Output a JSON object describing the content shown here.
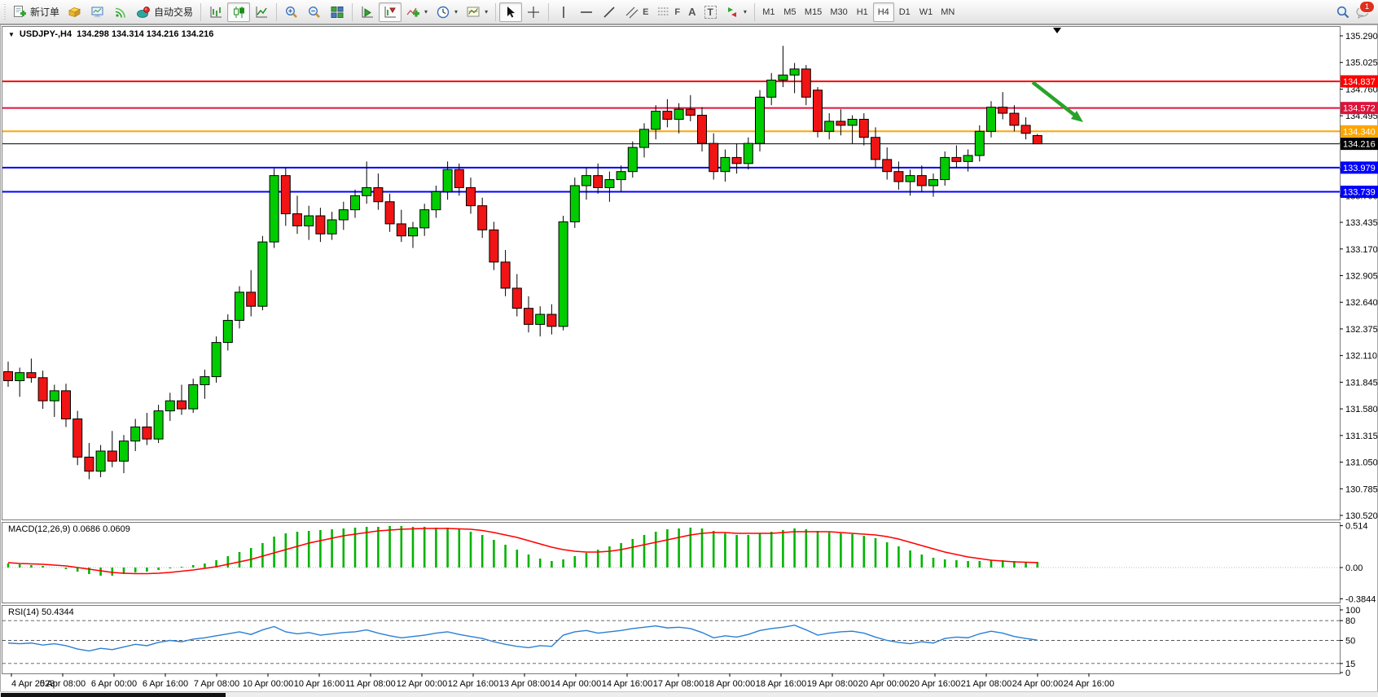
{
  "window": {
    "title_symbol": "USDJPY-,H4",
    "title_ohlc": "134.298 134.314 134.216 134.216"
  },
  "toolbar": {
    "new_order_label": "新订单",
    "autotrading_label": "自动交易",
    "timeframes": [
      "M1",
      "M5",
      "M15",
      "M30",
      "H1",
      "H4",
      "D1",
      "W1",
      "MN"
    ],
    "active_timeframe": "H4",
    "notification_badge": "1"
  },
  "icons": {
    "title_dropdown": "▼",
    "dropdown_arrow": "▾",
    "text_tool": "A",
    "label_tool": "T",
    "channel_suffix": "E",
    "fibo_suffix": "F"
  },
  "price_axis": {
    "side": "right",
    "tick_step": 0.265,
    "ticks": [
      "135.290",
      "135.025",
      "134.760",
      "134.495",
      "134.230",
      "133.965",
      "133.700",
      "133.435",
      "133.170",
      "132.905",
      "132.640",
      "132.375",
      "132.110",
      "131.845",
      "131.580",
      "131.315",
      "131.050",
      "130.785",
      "130.520"
    ],
    "badges": [
      {
        "label": "134.837",
        "price": 134.837,
        "color": "#FF0000",
        "text_color": "#FFFFFF"
      },
      {
        "label": "134.572",
        "price": 134.572,
        "color": "#DC143C",
        "text_color": "#FFFFFF"
      },
      {
        "label": "134.340",
        "price": 134.34,
        "color": "#FFA500",
        "text_color": "#FFFFFF"
      },
      {
        "label": "134.216",
        "price": 134.216,
        "color": "#000000",
        "text_color": "#FFFFFF"
      },
      {
        "label": "133.979",
        "price": 133.979,
        "color": "#0000FF",
        "text_color": "#FFFFFF"
      },
      {
        "label": "133.739",
        "price": 133.739,
        "color": "#0000FF",
        "text_color": "#FFFFFF"
      }
    ]
  },
  "hlines": [
    {
      "price": 134.837,
      "color": "#FF0000",
      "width": 2
    },
    {
      "price": 134.572,
      "color": "#DC143C",
      "width": 2
    },
    {
      "price": 134.34,
      "color": "#FFA500",
      "width": 2
    },
    {
      "price": 134.216,
      "color": "#000000",
      "width": 1
    },
    {
      "price": 133.979,
      "color": "#0000FF",
      "width": 2
    },
    {
      "price": 133.739,
      "color": "#0000FF",
      "width": 2
    }
  ],
  "chart_data": {
    "type": "candlestick",
    "symbol": "USDJPY-",
    "timeframe": "H4",
    "current_ohlc": {
      "open": 134.298,
      "high": 134.314,
      "low": 134.216,
      "close": 134.216
    },
    "up_color": "#00CC00",
    "down_color": "#F01414",
    "wick_color": "#000000",
    "y_range": [
      130.47,
      135.39
    ],
    "x_labels": [
      "4 Apr 2023",
      "5 Apr 08:00",
      "6 Apr 00:00",
      "6 Apr 16:00",
      "7 Apr 08:00",
      "10 Apr 00:00",
      "10 Apr 16:00",
      "11 Apr 08:00",
      "12 Apr 00:00",
      "12 Apr 16:00",
      "13 Apr 08:00",
      "14 Apr 00:00",
      "14 Apr 16:00",
      "17 Apr 08:00",
      "18 Apr 00:00",
      "18 Apr 16:00",
      "19 Apr 08:00",
      "20 Apr 00:00",
      "20 Apr 16:00",
      "21 Apr 08:00",
      "24 Apr 00:00",
      "24 Apr 16:00"
    ],
    "candles": [
      [
        131.95,
        132.05,
        131.8,
        131.86
      ],
      [
        131.86,
        131.99,
        131.7,
        131.94
      ],
      [
        131.94,
        132.08,
        131.84,
        131.89
      ],
      [
        131.89,
        131.96,
        131.58,
        131.66
      ],
      [
        131.66,
        131.82,
        131.5,
        131.76
      ],
      [
        131.76,
        131.83,
        131.4,
        131.48
      ],
      [
        131.48,
        131.56,
        131.02,
        131.1
      ],
      [
        131.1,
        131.24,
        130.88,
        130.96
      ],
      [
        130.96,
        131.22,
        130.9,
        131.16
      ],
      [
        131.16,
        131.36,
        131.0,
        131.06
      ],
      [
        131.06,
        131.32,
        130.94,
        131.26
      ],
      [
        131.26,
        131.48,
        131.16,
        131.4
      ],
      [
        131.4,
        131.54,
        131.22,
        131.28
      ],
      [
        131.28,
        131.62,
        131.24,
        131.56
      ],
      [
        131.56,
        131.74,
        131.46,
        131.66
      ],
      [
        131.66,
        131.82,
        131.52,
        131.58
      ],
      [
        131.58,
        131.88,
        131.54,
        131.82
      ],
      [
        131.82,
        131.97,
        131.68,
        131.9
      ],
      [
        131.9,
        132.3,
        131.84,
        132.24
      ],
      [
        132.24,
        132.52,
        132.16,
        132.46
      ],
      [
        132.46,
        132.8,
        132.38,
        132.74
      ],
      [
        132.74,
        132.96,
        132.5,
        132.6
      ],
      [
        132.6,
        133.3,
        132.56,
        133.24
      ],
      [
        133.24,
        133.97,
        133.18,
        133.9
      ],
      [
        133.9,
        133.98,
        133.4,
        133.52
      ],
      [
        133.52,
        133.7,
        133.32,
        133.4
      ],
      [
        133.4,
        133.6,
        133.26,
        133.5
      ],
      [
        133.5,
        133.58,
        133.24,
        133.32
      ],
      [
        133.32,
        133.54,
        133.26,
        133.46
      ],
      [
        133.46,
        133.64,
        133.36,
        133.56
      ],
      [
        133.56,
        133.76,
        133.48,
        133.7
      ],
      [
        133.7,
        134.04,
        133.62,
        133.78
      ],
      [
        133.78,
        133.92,
        133.56,
        133.64
      ],
      [
        133.64,
        133.72,
        133.34,
        133.42
      ],
      [
        133.42,
        133.56,
        133.24,
        133.3
      ],
      [
        133.3,
        133.44,
        133.18,
        133.38
      ],
      [
        133.38,
        133.62,
        133.3,
        133.56
      ],
      [
        133.56,
        133.8,
        133.48,
        133.74
      ],
      [
        133.74,
        134.04,
        133.66,
        133.96
      ],
      [
        133.96,
        134.02,
        133.7,
        133.78
      ],
      [
        133.78,
        133.88,
        133.52,
        133.6
      ],
      [
        133.6,
        133.68,
        133.28,
        133.36
      ],
      [
        133.36,
        133.44,
        132.96,
        133.04
      ],
      [
        133.04,
        133.16,
        132.7,
        132.78
      ],
      [
        132.78,
        132.92,
        132.5,
        132.58
      ],
      [
        132.58,
        132.7,
        132.34,
        132.42
      ],
      [
        132.42,
        132.6,
        132.3,
        132.52
      ],
      [
        132.52,
        132.62,
        132.32,
        132.4
      ],
      [
        132.4,
        133.5,
        132.36,
        133.44
      ],
      [
        133.44,
        133.88,
        133.38,
        133.8
      ],
      [
        133.8,
        133.98,
        133.66,
        133.9
      ],
      [
        133.9,
        134.02,
        133.72,
        133.78
      ],
      [
        133.78,
        133.94,
        133.64,
        133.86
      ],
      [
        133.86,
        134.0,
        133.74,
        133.94
      ],
      [
        133.94,
        134.24,
        133.88,
        134.18
      ],
      [
        134.18,
        134.42,
        134.08,
        134.36
      ],
      [
        134.36,
        134.6,
        134.26,
        134.54
      ],
      [
        134.54,
        134.66,
        134.38,
        134.46
      ],
      [
        134.46,
        134.62,
        134.32,
        134.56
      ],
      [
        134.56,
        134.7,
        134.44,
        134.5
      ],
      [
        134.5,
        134.58,
        134.14,
        134.22
      ],
      [
        134.22,
        134.32,
        133.86,
        133.94
      ],
      [
        133.94,
        134.16,
        133.84,
        134.08
      ],
      [
        134.08,
        134.22,
        133.92,
        134.02
      ],
      [
        134.02,
        134.28,
        133.96,
        134.22
      ],
      [
        134.22,
        134.75,
        134.14,
        134.68
      ],
      [
        134.68,
        134.92,
        134.6,
        134.85
      ],
      [
        134.85,
        135.19,
        134.78,
        134.9
      ],
      [
        134.9,
        135.02,
        134.72,
        134.96
      ],
      [
        134.96,
        135.0,
        134.6,
        134.68
      ],
      [
        134.75,
        134.78,
        134.28,
        134.34
      ],
      [
        134.34,
        134.52,
        134.26,
        134.44
      ],
      [
        134.44,
        134.56,
        134.3,
        134.4
      ],
      [
        134.4,
        134.5,
        134.22,
        134.46
      ],
      [
        134.46,
        134.52,
        134.2,
        134.28
      ],
      [
        134.28,
        134.38,
        133.98,
        134.06
      ],
      [
        134.06,
        134.18,
        133.86,
        133.94
      ],
      [
        133.94,
        134.04,
        133.76,
        133.84
      ],
      [
        133.84,
        133.96,
        133.7,
        133.9
      ],
      [
        133.9,
        134.0,
        133.74,
        133.8
      ],
      [
        133.8,
        133.92,
        133.69,
        133.86
      ],
      [
        133.86,
        134.14,
        133.8,
        134.08
      ],
      [
        134.08,
        134.2,
        133.98,
        134.04
      ],
      [
        134.04,
        134.16,
        133.94,
        134.1
      ],
      [
        134.1,
        134.4,
        134.04,
        134.34
      ],
      [
        134.34,
        134.64,
        134.28,
        134.58
      ],
      [
        134.58,
        134.73,
        134.46,
        134.52
      ],
      [
        134.52,
        134.6,
        134.34,
        134.4
      ],
      [
        134.4,
        134.48,
        134.26,
        134.32
      ],
      [
        134.298,
        134.314,
        134.216,
        134.216
      ]
    ],
    "indicators": {
      "macd": {
        "label": "MACD(12,26,9) 0.0686 0.0609",
        "params": "12,26,9",
        "value": 0.0686,
        "signal_value": 0.0609,
        "hist_color": "#00B400",
        "signal_color": "#FF0000",
        "axis_ticks": [
          "0.514",
          "0.00",
          "-0.3844"
        ],
        "histogram": [
          0.05,
          0.04,
          0.03,
          0.02,
          0.0,
          -0.02,
          -0.05,
          -0.08,
          -0.1,
          -0.1,
          -0.08,
          -0.06,
          -0.05,
          -0.03,
          -0.01,
          0.01,
          0.03,
          0.05,
          0.09,
          0.14,
          0.19,
          0.24,
          0.3,
          0.38,
          0.42,
          0.44,
          0.45,
          0.46,
          0.47,
          0.48,
          0.49,
          0.5,
          0.5,
          0.51,
          0.51,
          0.5,
          0.5,
          0.49,
          0.49,
          0.47,
          0.44,
          0.4,
          0.34,
          0.28,
          0.22,
          0.16,
          0.11,
          0.08,
          0.1,
          0.14,
          0.18,
          0.22,
          0.26,
          0.3,
          0.35,
          0.4,
          0.44,
          0.47,
          0.48,
          0.49,
          0.48,
          0.45,
          0.42,
          0.4,
          0.4,
          0.42,
          0.44,
          0.46,
          0.48,
          0.47,
          0.45,
          0.43,
          0.42,
          0.41,
          0.39,
          0.36,
          0.31,
          0.26,
          0.21,
          0.16,
          0.12,
          0.1,
          0.09,
          0.08,
          0.08,
          0.09,
          0.09,
          0.08,
          0.07,
          0.0686
        ],
        "signal": [
          0.06,
          0.05,
          0.045,
          0.04,
          0.03,
          0.02,
          0.0,
          -0.02,
          -0.04,
          -0.06,
          -0.07,
          -0.075,
          -0.075,
          -0.07,
          -0.06,
          -0.045,
          -0.03,
          -0.01,
          0.01,
          0.04,
          0.07,
          0.1,
          0.14,
          0.18,
          0.22,
          0.26,
          0.3,
          0.33,
          0.36,
          0.39,
          0.41,
          0.43,
          0.45,
          0.46,
          0.47,
          0.475,
          0.48,
          0.48,
          0.48,
          0.475,
          0.47,
          0.455,
          0.43,
          0.4,
          0.37,
          0.33,
          0.29,
          0.25,
          0.22,
          0.2,
          0.19,
          0.19,
          0.2,
          0.22,
          0.25,
          0.28,
          0.31,
          0.34,
          0.37,
          0.4,
          0.42,
          0.43,
          0.43,
          0.42,
          0.42,
          0.42,
          0.42,
          0.43,
          0.44,
          0.44,
          0.44,
          0.44,
          0.43,
          0.42,
          0.41,
          0.4,
          0.38,
          0.35,
          0.31,
          0.27,
          0.23,
          0.19,
          0.16,
          0.13,
          0.11,
          0.09,
          0.08,
          0.07,
          0.065,
          0.0609
        ]
      },
      "rsi": {
        "label": "RSI(14) 50.4344",
        "period": 14,
        "value": 50.4344,
        "color": "#2A7FD4",
        "levels": [
          80,
          50,
          15
        ],
        "axis_ticks": [
          "100",
          "80",
          "50",
          "15",
          "0"
        ],
        "values": [
          46,
          45,
          46,
          43,
          45,
          42,
          37,
          34,
          38,
          36,
          40,
          44,
          42,
          47,
          50,
          48,
          52,
          54,
          57,
          60,
          63,
          59,
          66,
          71,
          63,
          60,
          62,
          58,
          60,
          62,
          63,
          66,
          61,
          57,
          54,
          56,
          58,
          61,
          63,
          59,
          56,
          53,
          48,
          44,
          41,
          39,
          42,
          41,
          58,
          63,
          65,
          61,
          63,
          65,
          68,
          70,
          72,
          69,
          70,
          68,
          62,
          54,
          57,
          55,
          59,
          65,
          68,
          70,
          73,
          66,
          58,
          61,
          63,
          64,
          61,
          55,
          50,
          47,
          45,
          48,
          46,
          53,
          55,
          54,
          60,
          64,
          61,
          56,
          53,
          50.4
        ]
      }
    }
  },
  "annotations": {
    "arrow": {
      "color": "#28A32A",
      "from": [
        1268,
        101
      ],
      "to": [
        1319,
        141
      ]
    },
    "shift_marker_x": 1293
  }
}
